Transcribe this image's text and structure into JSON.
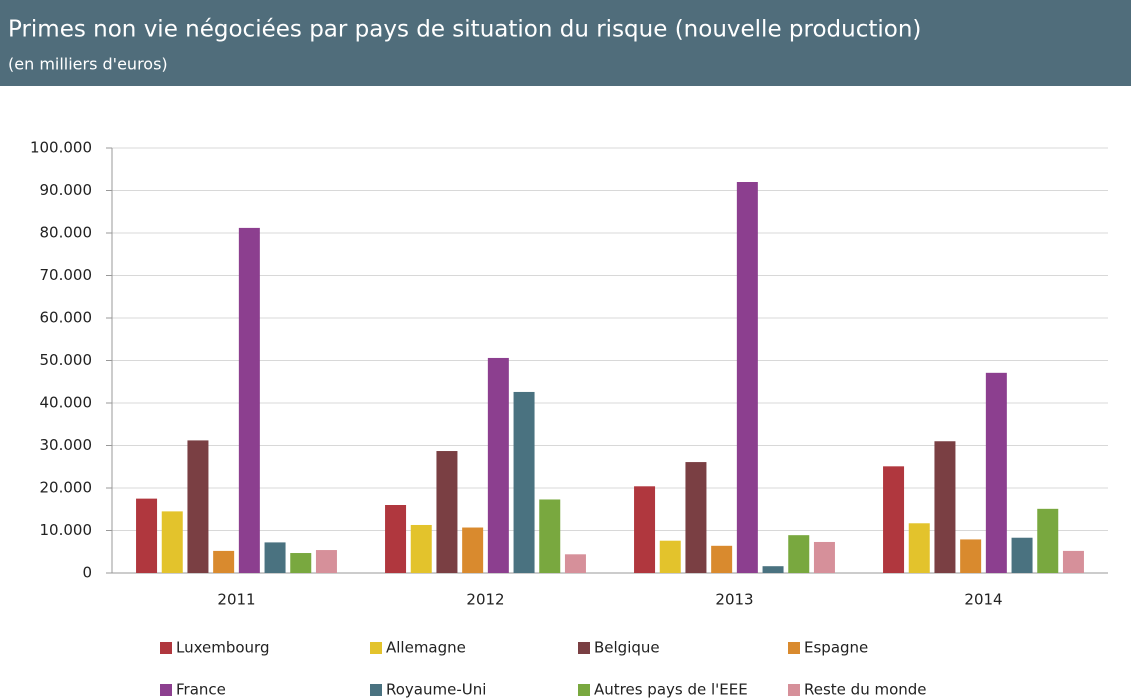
{
  "chart_data": {
    "type": "bar",
    "title": "Primes non vie négociées par pays de situation du risque (nouvelle production)",
    "subtitle": "(en milliers d'euros)",
    "categories": [
      "2011",
      "2012",
      "2013",
      "2014"
    ],
    "series": [
      {
        "name": "Luxembourg",
        "color": "#b0373e",
        "values": [
          17500,
          16000,
          20400,
          25100
        ]
      },
      {
        "name": "Allemagne",
        "color": "#e3c32c",
        "values": [
          14500,
          11300,
          7600,
          11700
        ]
      },
      {
        "name": "Belgique",
        "color": "#7a3f43",
        "values": [
          31200,
          28700,
          26100,
          31000
        ]
      },
      {
        "name": "Espagne",
        "color": "#d98a2e",
        "values": [
          5200,
          10700,
          6400,
          7900
        ]
      },
      {
        "name": "France",
        "color": "#8c3f8f",
        "values": [
          81200,
          50600,
          92000,
          47100
        ]
      },
      {
        "name": "Royaume-Uni",
        "color": "#4a7280",
        "values": [
          7200,
          42600,
          1600,
          8300
        ]
      },
      {
        "name": "Autres pays de l'EEE",
        "color": "#79a83f",
        "values": [
          4700,
          17300,
          8900,
          15100
        ]
      },
      {
        "name": "Reste du monde",
        "color": "#d6909a",
        "values": [
          5400,
          4400,
          7300,
          5200
        ]
      }
    ],
    "ylim": [
      0,
      100000
    ],
    "yticks": [
      0,
      {
        "value": 10000,
        "label": "10.000"
      },
      {
        "value": 20000,
        "label": "20.000"
      },
      {
        "value": 30000,
        "label": "30.000"
      },
      {
        "value": 40000,
        "label": "40.000"
      },
      {
        "value": 50000,
        "label": "50.000"
      },
      {
        "value": 60000,
        "label": "60.000"
      },
      {
        "value": 70000,
        "label": "70.000"
      },
      {
        "value": 80000,
        "label": "80.000"
      },
      {
        "value": 90000,
        "label": "90.000"
      },
      {
        "value": 100000,
        "label": "100.000"
      }
    ],
    "grid": true,
    "legend": "bottom"
  }
}
